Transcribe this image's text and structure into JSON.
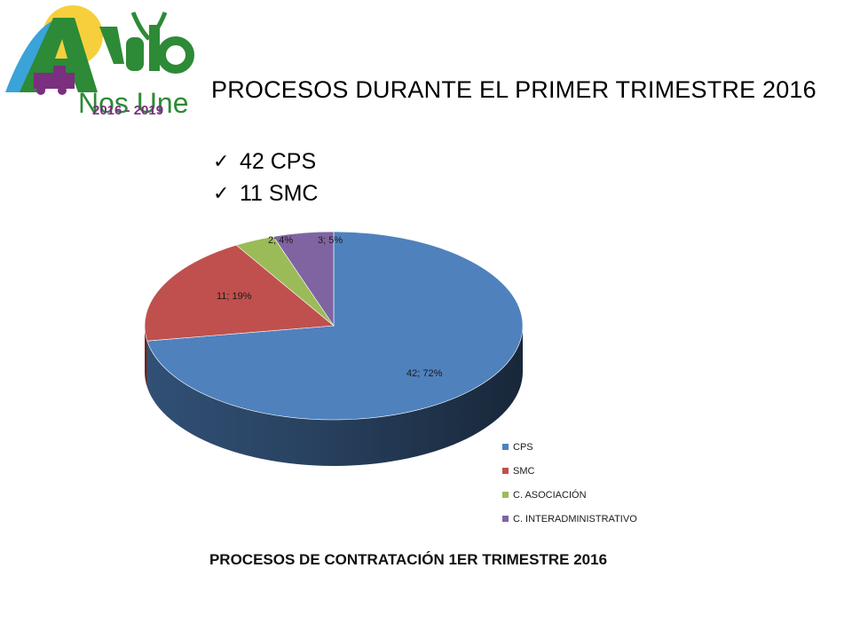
{
  "logo": {
    "name": "Apulo",
    "tagline": "Nos Une",
    "years": "2016 - 2019",
    "colors": {
      "green": "#2d8a36",
      "yellow": "#f4c81a",
      "purple": "#7a2f7f",
      "blue": "#3aa3d8"
    }
  },
  "heading": "PROCESOS DURANTE EL PRIMER TRIMESTRE  2016",
  "bullets": [
    {
      "text": "42 CPS"
    },
    {
      "text": "11 SMC"
    }
  ],
  "chart_data": {
    "type": "pie",
    "style": "3d",
    "title": "PROCESOS DE CONTRATACIÓN 1ER TRIMESTRE 2016",
    "categories": [
      "CPS",
      "SMC",
      "C. ASOCIACIÓN",
      "C. INTERADMINISTRATIVO"
    ],
    "values": [
      42,
      11,
      2,
      3
    ],
    "percents": [
      72,
      19,
      4,
      5
    ],
    "data_labels": [
      "42; 72%",
      "11; 19%",
      "2; 4%",
      "3; 5%"
    ],
    "colors": [
      "#4f81bd",
      "#c0504d",
      "#9bbb59",
      "#8064a2"
    ],
    "legend_position": "bottom-right"
  }
}
